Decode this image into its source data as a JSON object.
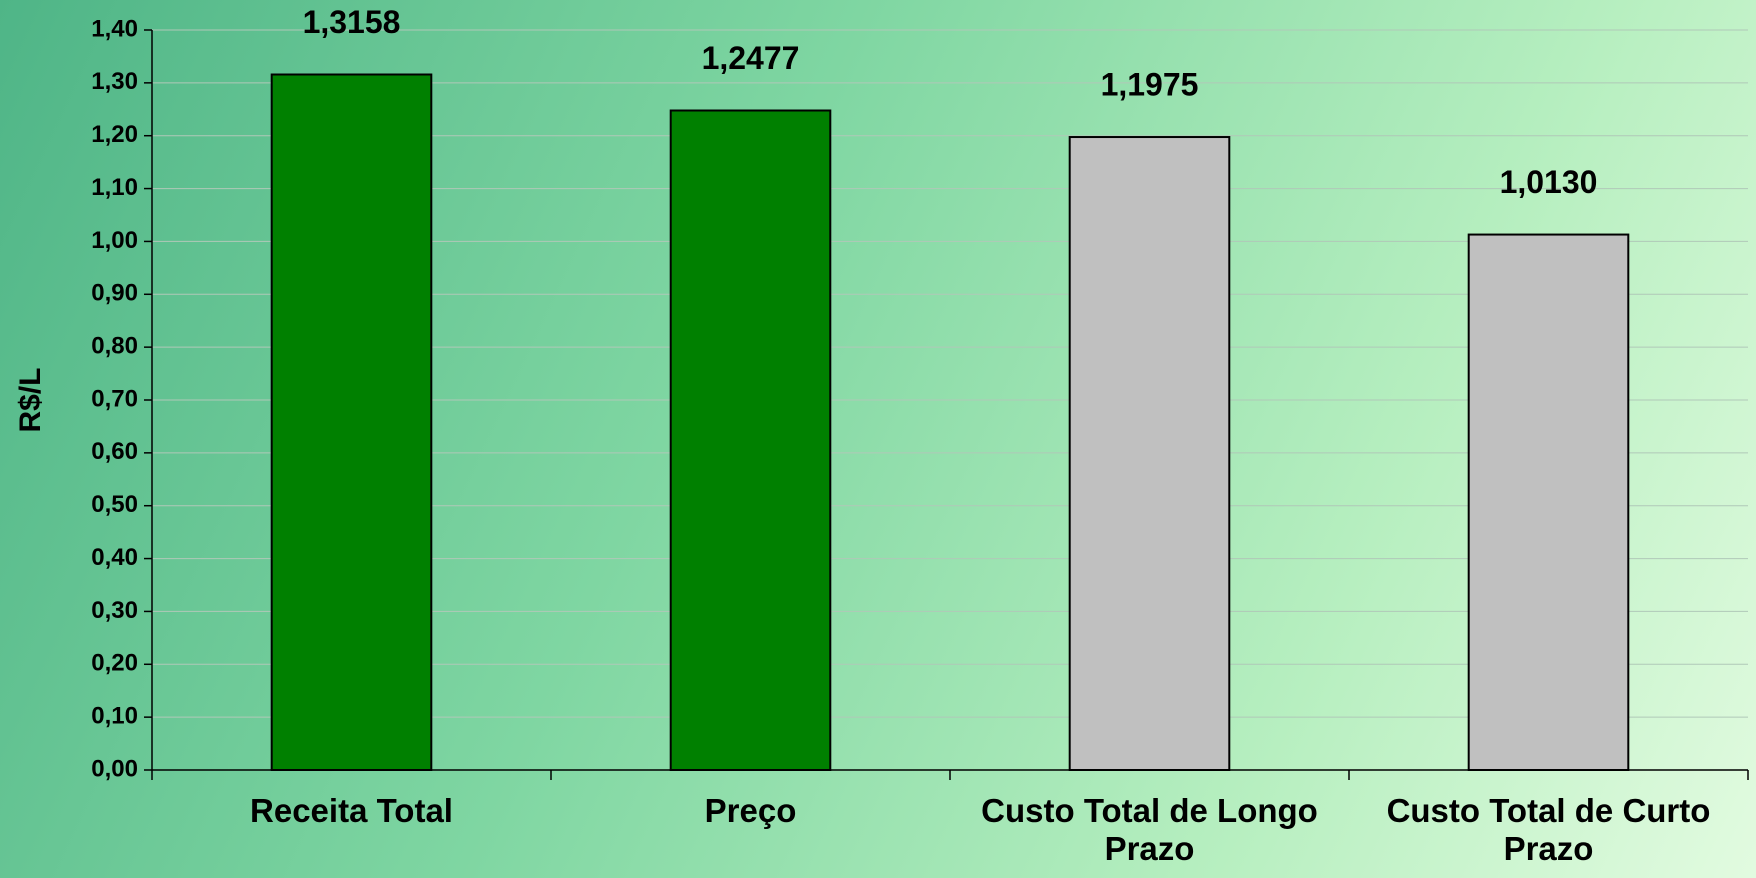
{
  "chart_data": {
    "type": "bar",
    "y_label": "R$/L",
    "categories": [
      "Receita Total",
      "Preço",
      "Custo Total de Longo Prazo",
      "Custo Total de Curto Prazo"
    ],
    "values": [
      1.3158,
      1.2477,
      1.1975,
      1.013
    ],
    "value_labels": [
      "1,3158",
      "1,2477",
      "1,1975",
      "1,0130"
    ],
    "colors": [
      "#008000",
      "#008000",
      "#c0c0c0",
      "#c0c0c0"
    ],
    "ylim": [
      0,
      1.4
    ],
    "yticks": [
      {
        "value": 0,
        "label": "0,00"
      },
      {
        "value": 0.1,
        "label": "0,10"
      },
      {
        "value": 0.2,
        "label": "0,20"
      },
      {
        "value": 0.3,
        "label": "0,30"
      },
      {
        "value": 0.4,
        "label": "0,40"
      },
      {
        "value": 0.5,
        "label": "0,50"
      },
      {
        "value": 0.6,
        "label": "0,60"
      },
      {
        "value": 0.7,
        "label": "0,70"
      },
      {
        "value": 0.8,
        "label": "0,80"
      },
      {
        "value": 0.9,
        "label": "0,90"
      },
      {
        "value": 1.0,
        "label": "1,00"
      },
      {
        "value": 1.1,
        "label": "1,10"
      },
      {
        "value": 1.2,
        "label": "1,20"
      },
      {
        "value": 1.3,
        "label": "1,30"
      },
      {
        "value": 1.4,
        "label": "1,40"
      }
    ],
    "grid": true
  }
}
